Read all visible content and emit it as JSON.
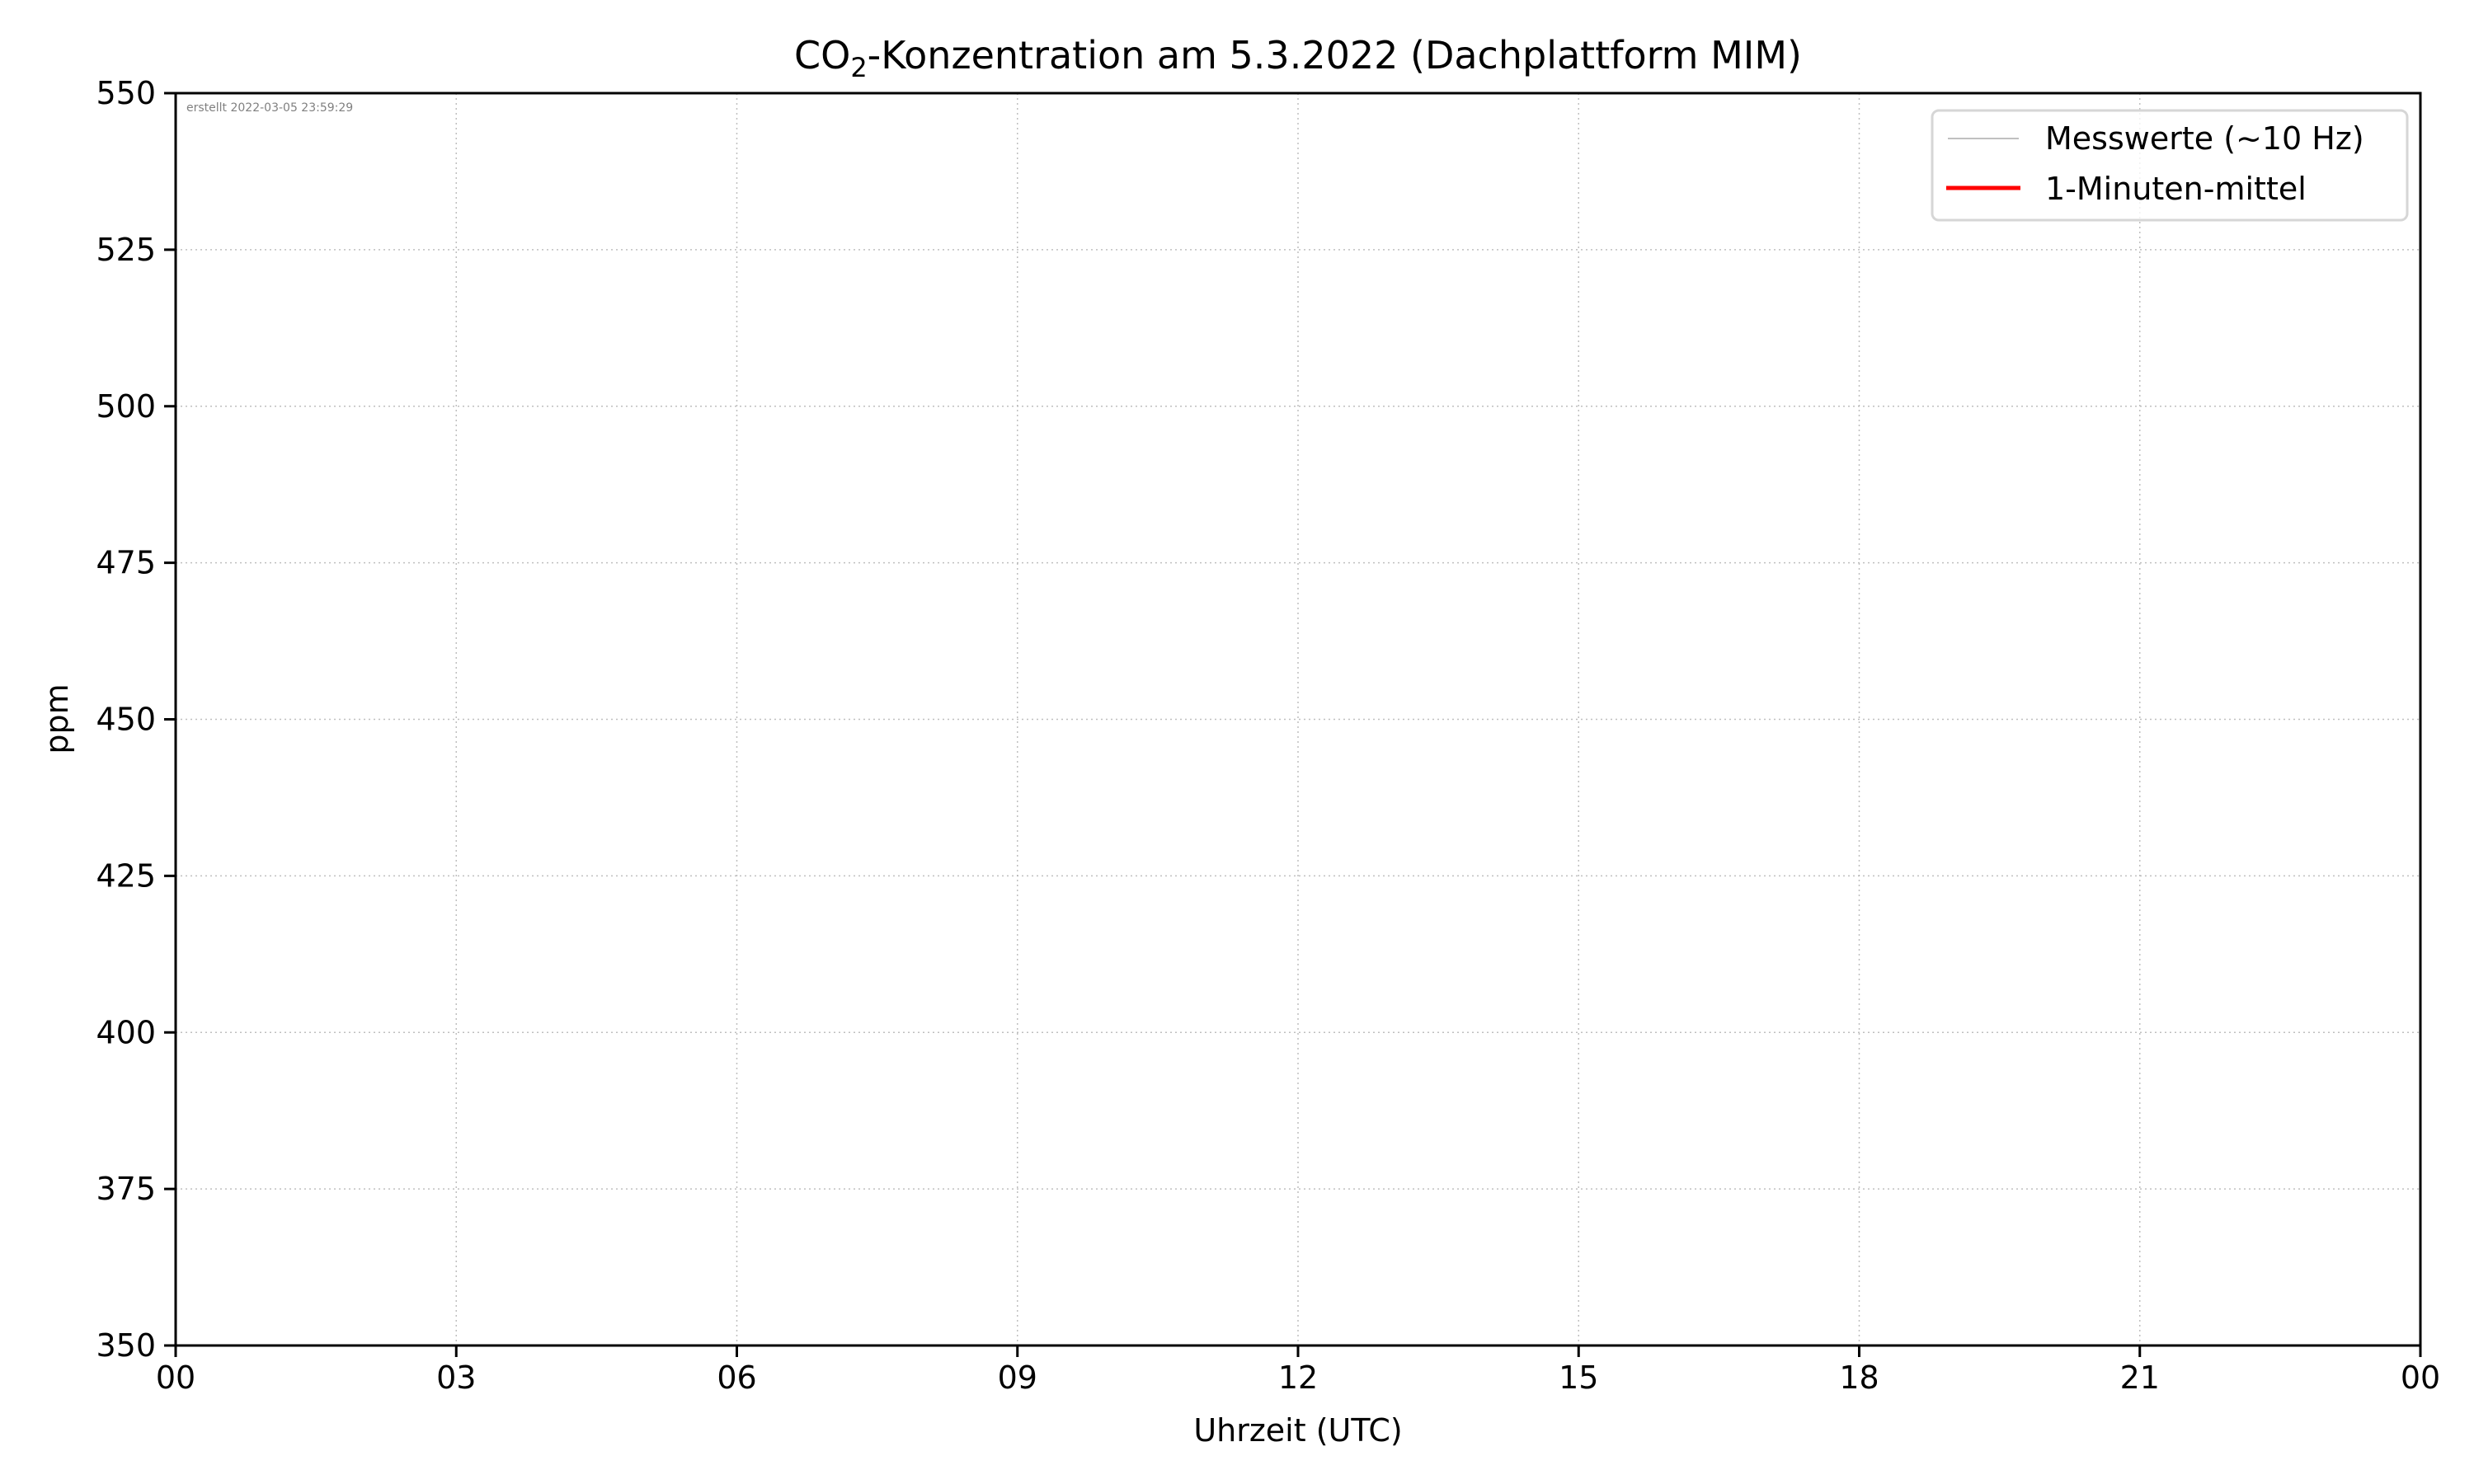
{
  "chart_data": {
    "type": "line",
    "title_main": "CO",
    "title_sub": "2",
    "title_rest": "-Konzentration am 5.3.2022 (Dachplattform MIM)",
    "xlabel": "Uhrzeit (UTC)",
    "ylabel": "ppm",
    "annotation": "erstellt 2022-03-05 23:59:29",
    "x_ticks": [
      "00",
      "03",
      "06",
      "09",
      "12",
      "15",
      "18",
      "21",
      "00"
    ],
    "xlim_hours": [
      0,
      24
    ],
    "y_ticks": [
      350,
      375,
      400,
      425,
      450,
      475,
      500,
      525,
      550
    ],
    "ylim": [
      350,
      550
    ],
    "grid": true,
    "legend_position": "top-right",
    "series": [
      {
        "name": "Messwerte (~10 Hz)",
        "color": "#c0c0c0",
        "x": [],
        "y": []
      },
      {
        "name": "1-Minuten-mittel",
        "color": "#ff0000",
        "x": [],
        "y": []
      }
    ]
  }
}
